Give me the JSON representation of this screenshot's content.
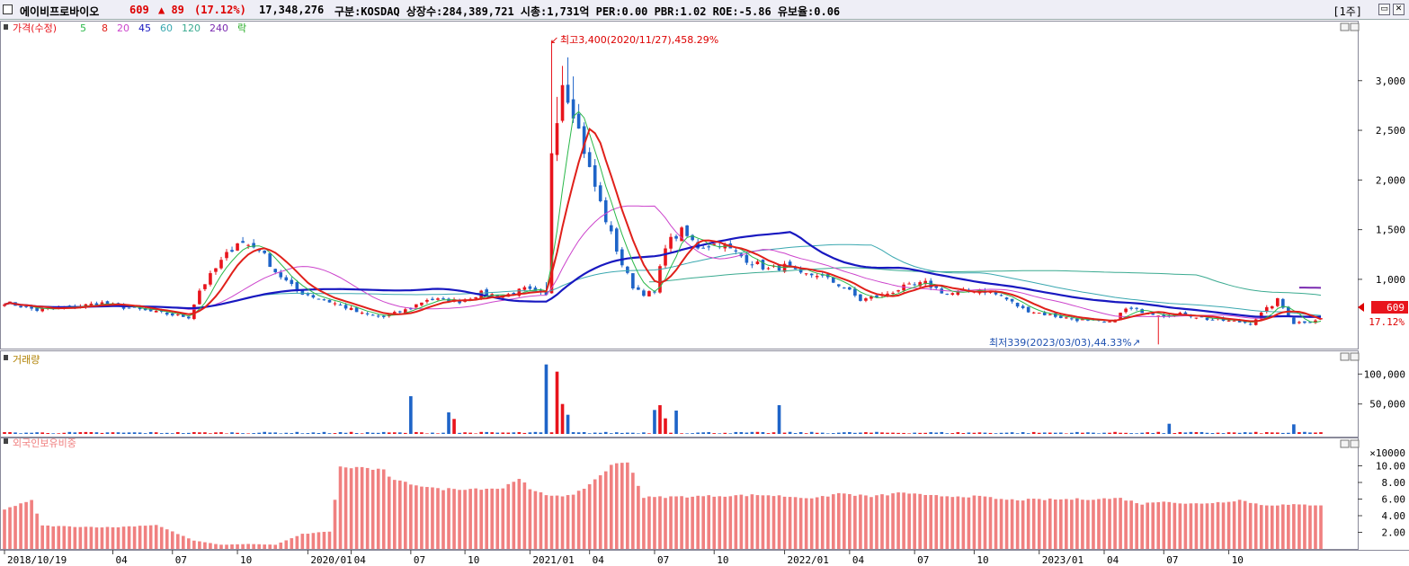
{
  "header": {
    "name": "에이비프로바이오",
    "price": "609",
    "change": "▲ 89",
    "change_pct": "(17.12%)",
    "volume": "17,348,276",
    "info": "구분:KOSDAQ 상장수:284,389,721 시총:1,731억 PER:0.00 PBR:1.02 ROE:-5.86 유보율:0.06",
    "period": "[1주]"
  },
  "legend": {
    "price": [
      "가격(수정)",
      "5",
      "8",
      "20",
      "45",
      "60",
      "120",
      "240",
      "락"
    ],
    "volume": "거래량",
    "foreign": "외국인보유비중"
  },
  "annotations": {
    "high": "최고3,400(2020/11/27),458.29%",
    "low": "최저339(2023/03/03),44.33%",
    "current_price": "609",
    "current_pct": "17.12%",
    "volume_unit": "×10000"
  },
  "colors": {
    "up": "#e8141c",
    "down": "#1e64c8",
    "ma5": "#2bb84a",
    "ma8": "#e0201a",
    "ma20": "#cc44cc",
    "ma45": "#1818c0",
    "ma60": "#3aa8b0",
    "ma120": "#3aaa90",
    "ma240": "#7a2ab0",
    "foreign": "#f08080"
  },
  "chart_data": {
    "type": "candlestick",
    "x_labels": [
      "2018/10/19",
      "04",
      "07",
      "10",
      "2020/01",
      "04",
      "07",
      "10",
      "2021/01",
      "04",
      "07",
      "10",
      "2022/01",
      "04",
      "07",
      "10",
      "2023/01",
      "04",
      "07",
      "10"
    ],
    "price_axis": {
      "ticks": [
        "3,000",
        "2,500",
        "2,000",
        "1,500",
        "1,000"
      ],
      "range": [
        330,
        3450
      ]
    },
    "volume_axis": {
      "ticks": [
        "100,000",
        "50,000"
      ]
    },
    "foreign_axis": {
      "ticks": [
        "10.00",
        "8.00",
        "6.00",
        "4.00",
        "2.00"
      ],
      "range": [
        0,
        12
      ]
    },
    "price_anchors": [
      [
        0,
        770
      ],
      [
        6,
        690
      ],
      [
        12,
        720
      ],
      [
        18,
        760
      ],
      [
        24,
        700
      ],
      [
        30,
        650
      ],
      [
        34,
        620
      ],
      [
        36,
        890
      ],
      [
        40,
        1180
      ],
      [
        43,
        1380
      ],
      [
        47,
        1310
      ],
      [
        50,
        1080
      ],
      [
        54,
        880
      ],
      [
        58,
        810
      ],
      [
        62,
        740
      ],
      [
        66,
        650
      ],
      [
        70,
        620
      ],
      [
        74,
        690
      ],
      [
        78,
        800
      ],
      [
        84,
        780
      ],
      [
        88,
        860
      ],
      [
        92,
        830
      ],
      [
        96,
        900
      ],
      [
        100,
        830
      ],
      [
        101,
        2300
      ],
      [
        103,
        3000
      ],
      [
        105,
        2700
      ],
      [
        108,
        2100
      ],
      [
        111,
        1600
      ],
      [
        114,
        1150
      ],
      [
        116,
        930
      ],
      [
        118,
        860
      ],
      [
        120,
        860
      ],
      [
        122,
        1350
      ],
      [
        125,
        1480
      ],
      [
        128,
        1330
      ],
      [
        132,
        1360
      ],
      [
        137,
        1200
      ],
      [
        141,
        1100
      ],
      [
        144,
        1130
      ],
      [
        147,
        1040
      ],
      [
        150,
        1050
      ],
      [
        155,
        920
      ],
      [
        158,
        790
      ],
      [
        162,
        840
      ],
      [
        166,
        920
      ],
      [
        170,
        960
      ],
      [
        174,
        850
      ],
      [
        180,
        900
      ],
      [
        184,
        830
      ],
      [
        188,
        700
      ],
      [
        192,
        650
      ],
      [
        196,
        610
      ],
      [
        200,
        580
      ],
      [
        204,
        560
      ],
      [
        207,
        700
      ],
      [
        210,
        680
      ],
      [
        214,
        640
      ],
      [
        218,
        650
      ],
      [
        222,
        600
      ],
      [
        226,
        580
      ],
      [
        230,
        560
      ],
      [
        233,
        700
      ],
      [
        235,
        790
      ],
      [
        238,
        560
      ],
      [
        241,
        580
      ],
      [
        243,
        609
      ]
    ],
    "ma_params": {
      "5": 5,
      "8": 8,
      "20": 20,
      "45": 45,
      "60": 60,
      "120": 120,
      "240": 240
    },
    "volume_spikes": [
      [
        75,
        63
      ],
      [
        82,
        36
      ],
      [
        83,
        25
      ],
      [
        100,
        116
      ],
      [
        102,
        104
      ],
      [
        103,
        50
      ],
      [
        104,
        32
      ],
      [
        120,
        40
      ],
      [
        121,
        48
      ],
      [
        122,
        26
      ],
      [
        124,
        39
      ],
      [
        143,
        48
      ],
      [
        215,
        17
      ],
      [
        238,
        16
      ]
    ],
    "foreign_anchors": [
      [
        0,
        4.8
      ],
      [
        5,
        5.8
      ],
      [
        7,
        2.8
      ],
      [
        12,
        2.7
      ],
      [
        20,
        2.6
      ],
      [
        28,
        2.9
      ],
      [
        35,
        1.0
      ],
      [
        40,
        0.5
      ],
      [
        45,
        0.6
      ],
      [
        50,
        0.5
      ],
      [
        55,
        1.8
      ],
      [
        60,
        2.1
      ],
      [
        62,
        9.8
      ],
      [
        66,
        9.8
      ],
      [
        70,
        9.4
      ],
      [
        72,
        8.2
      ],
      [
        78,
        7.5
      ],
      [
        80,
        7.2
      ],
      [
        92,
        7.3
      ],
      [
        95,
        8.6
      ],
      [
        97,
        7.1
      ],
      [
        100,
        6.5
      ],
      [
        105,
        6.4
      ],
      [
        108,
        7.8
      ],
      [
        112,
        10.0
      ],
      [
        115,
        10.6
      ],
      [
        118,
        6.2
      ],
      [
        140,
        6.5
      ],
      [
        150,
        6.1
      ],
      [
        154,
        6.7
      ],
      [
        160,
        6.3
      ],
      [
        166,
        6.8
      ],
      [
        170,
        6.4
      ],
      [
        180,
        6.3
      ],
      [
        185,
        5.9
      ],
      [
        200,
        6.0
      ],
      [
        206,
        6.1
      ],
      [
        210,
        5.4
      ],
      [
        214,
        5.8
      ],
      [
        218,
        5.4
      ],
      [
        224,
        5.6
      ],
      [
        228,
        5.9
      ],
      [
        232,
        5.3
      ],
      [
        243,
        5.3
      ]
    ]
  }
}
